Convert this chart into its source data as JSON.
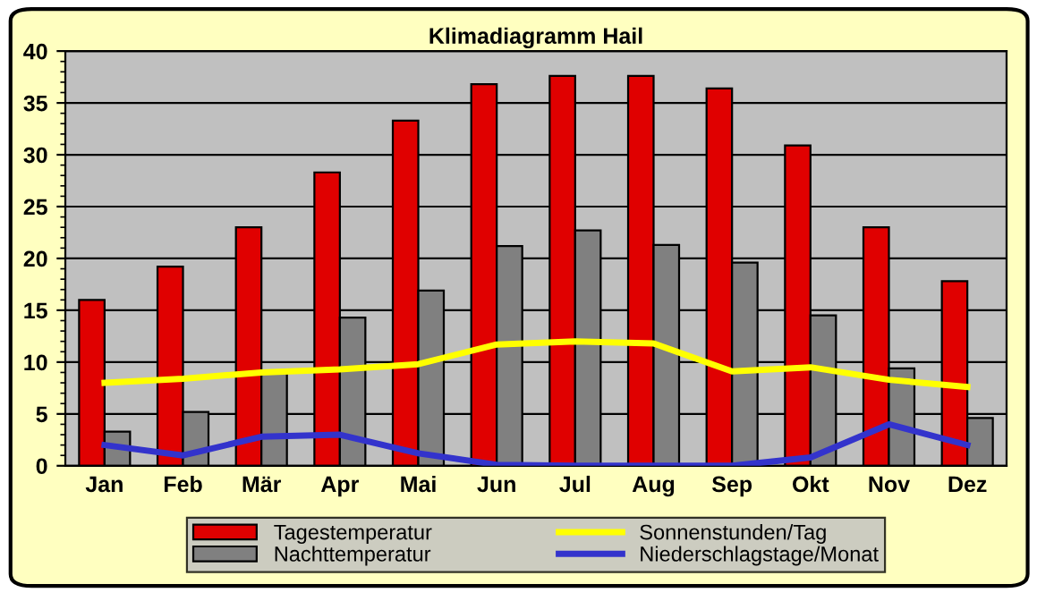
{
  "chart_data": {
    "type": "bar",
    "title": "Klimadiagramm Hail",
    "categories": [
      "Jan",
      "Feb",
      "Mär",
      "Apr",
      "Mai",
      "Jun",
      "Jul",
      "Aug",
      "Sep",
      "Okt",
      "Nov",
      "Dez"
    ],
    "series": [
      {
        "name": "Tagestemperatur",
        "color": "#e00000",
        "values": [
          16,
          19.2,
          23,
          28.3,
          33.3,
          36.8,
          37.6,
          37.6,
          36.4,
          30.9,
          23,
          17.8
        ]
      },
      {
        "name": "Nachttemperatur",
        "color": "#808080",
        "values": [
          3.3,
          5.2,
          9.2,
          14.3,
          16.9,
          21.2,
          22.7,
          21.3,
          19.6,
          14.5,
          9.4,
          4.6
        ]
      },
      {
        "name": "Sonnenstunden/Tag",
        "type": "line",
        "color": "#ffff00",
        "values": [
          8,
          8.4,
          9,
          9.3,
          9.8,
          11.7,
          12,
          11.8,
          9.1,
          9.5,
          8.3,
          7.6
        ]
      },
      {
        "name": "Niederschlagstage/Monat",
        "type": "line",
        "color": "#3333cc",
        "values": [
          2,
          1,
          2.8,
          3,
          1.2,
          0.1,
          0,
          0,
          0,
          0.8,
          4,
          2
        ]
      }
    ],
    "ylim": [
      0,
      40
    ],
    "yticks": [
      0,
      5,
      10,
      15,
      20,
      25,
      30,
      35,
      40
    ],
    "grid": "y",
    "legend": "bottom"
  }
}
